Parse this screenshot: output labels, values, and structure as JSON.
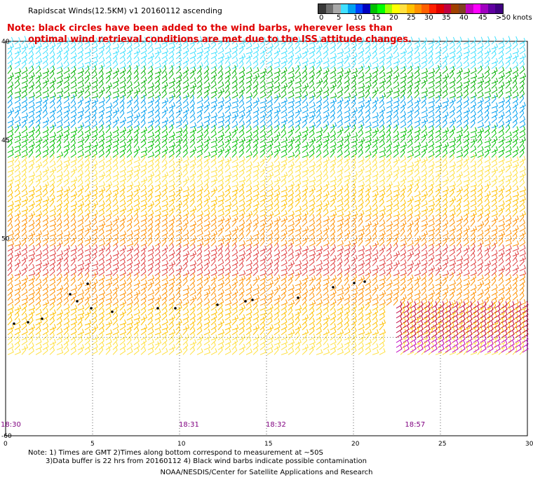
{
  "title": "Rapidscat Winds(12.5KM) v1 20160112 ascending",
  "note": {
    "line1": "Note: black circles have been added to the wind barbs, wherever less than",
    "line2": "optimal wind retrieval conditions are met due to the ISS attitude changes."
  },
  "legend": {
    "labels": [
      "0",
      "5",
      "10",
      "15",
      "20",
      "25",
      "30",
      "35",
      "40",
      "45",
      ">50 knots"
    ],
    "colors": [
      "#383838",
      "#707070",
      "#a8a8a8",
      "#40e0ff",
      "#00a0f0",
      "#0040ff",
      "#0000c0",
      "#00c000",
      "#00ff00",
      "#a0ff00",
      "#ffff00",
      "#ffe040",
      "#ffc000",
      "#ff9000",
      "#ff6000",
      "#ff2000",
      "#e00000",
      "#c00040",
      "#a04000",
      "#804020",
      "#c000c0",
      "#ff00ff",
      "#a000c0",
      "#6000a0",
      "#400080"
    ]
  },
  "axes": {
    "x_ticks": [
      "0",
      "5",
      "10",
      "15",
      "20",
      "25",
      "30"
    ],
    "y_ticks": [
      "40",
      "45",
      "50",
      "60"
    ],
    "x_range": [
      0,
      30
    ],
    "lat_range": [
      -40,
      -60
    ]
  },
  "time_labels": [
    "18:30",
    "18:31",
    "18:32",
    "18:57"
  ],
  "wind_bands": [
    {
      "lat_from": -40.0,
      "lat_to": -41.5,
      "color": "#40e0ff"
    },
    {
      "lat_from": -41.5,
      "lat_to": -43.0,
      "color": "#00b000"
    },
    {
      "lat_from": -43.0,
      "lat_to": -44.5,
      "color": "#00a0f0"
    },
    {
      "lat_from": -44.5,
      "lat_to": -46.0,
      "color": "#00c000"
    },
    {
      "lat_from": -46.0,
      "lat_to": -47.5,
      "color": "#ffe040"
    },
    {
      "lat_from": -47.5,
      "lat_to": -49.0,
      "color": "#ffc000"
    },
    {
      "lat_from": -49.0,
      "lat_to": -50.5,
      "color": "#ff9000"
    },
    {
      "lat_from": -50.5,
      "lat_to": -52.0,
      "color": "#e04040"
    },
    {
      "lat_from": -52.0,
      "lat_to": -53.5,
      "color": "#ff9000"
    },
    {
      "lat_from": -53.5,
      "lat_to": -55.0,
      "color": "#ffc000"
    },
    {
      "lat_from": -55.0,
      "lat_to": -56.0,
      "color": "#ffe040"
    }
  ],
  "footnotes": {
    "line1": "Note: 1) Times are GMT 2)Times along bottom correspond to measurement at ~50S",
    "line2": "3)Data buffer is 22 hrs from 20160112 4) Black wind barbs indicate possible contamination"
  },
  "credit": "NOAA/NESDIS/Center for Satellite Applications and Research"
}
